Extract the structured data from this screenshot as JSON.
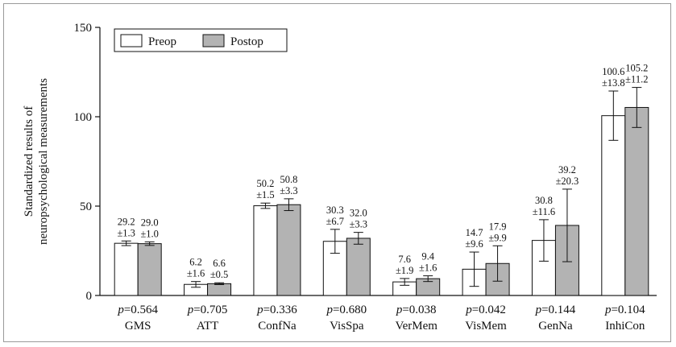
{
  "chart_data": {
    "type": "bar",
    "ylabel_lines": [
      "Standardized results of",
      "neuropsychological measurements"
    ],
    "ylim": [
      0,
      150
    ],
    "yticks": [
      0,
      50,
      100,
      150
    ],
    "categories": [
      "GMS",
      "ATT",
      "ConfNa",
      "VisSpa",
      "VerMem",
      "VisMem",
      "GenNa",
      "InhiCon"
    ],
    "p_prefix": "p",
    "p_values": [
      "=0.564",
      "=0.705",
      "=0.336",
      "=0.680",
      "=0.038",
      "=0.042",
      "=0.144",
      "=0.104"
    ],
    "legend_position": "top-left",
    "series": [
      {
        "name": "Preop",
        "color": "#ffffff",
        "values": [
          29.2,
          6.2,
          50.2,
          30.3,
          7.6,
          14.7,
          30.8,
          100.6
        ],
        "errors": [
          1.3,
          1.6,
          1.5,
          6.7,
          1.9,
          9.6,
          11.6,
          13.8
        ],
        "labels_top": [
          "29.2",
          "6.2",
          "50.2",
          "30.3",
          "7.6",
          "14.7",
          "30.8",
          "100.6"
        ],
        "labels_bottom": [
          "±1.3",
          "±1.6",
          "±1.5",
          "±6.7",
          "±1.9",
          "±9.6",
          "±11.6",
          "±13.8"
        ]
      },
      {
        "name": "Postop",
        "color": "#b3b3b3",
        "values": [
          29.0,
          6.6,
          50.8,
          32.0,
          9.4,
          17.9,
          39.2,
          105.2
        ],
        "errors": [
          1.0,
          0.5,
          3.3,
          3.3,
          1.6,
          9.9,
          20.3,
          11.2
        ],
        "labels_top": [
          "29.0",
          "6.6",
          "50.8",
          "32.0",
          "9.4",
          "17.9",
          "39.2",
          "105.2"
        ],
        "labels_bottom": [
          "±1.0",
          "±0.5",
          "±3.3",
          "±3.3",
          "±1.6",
          "±9.9",
          "±20.3",
          "±11.2"
        ]
      }
    ]
  }
}
